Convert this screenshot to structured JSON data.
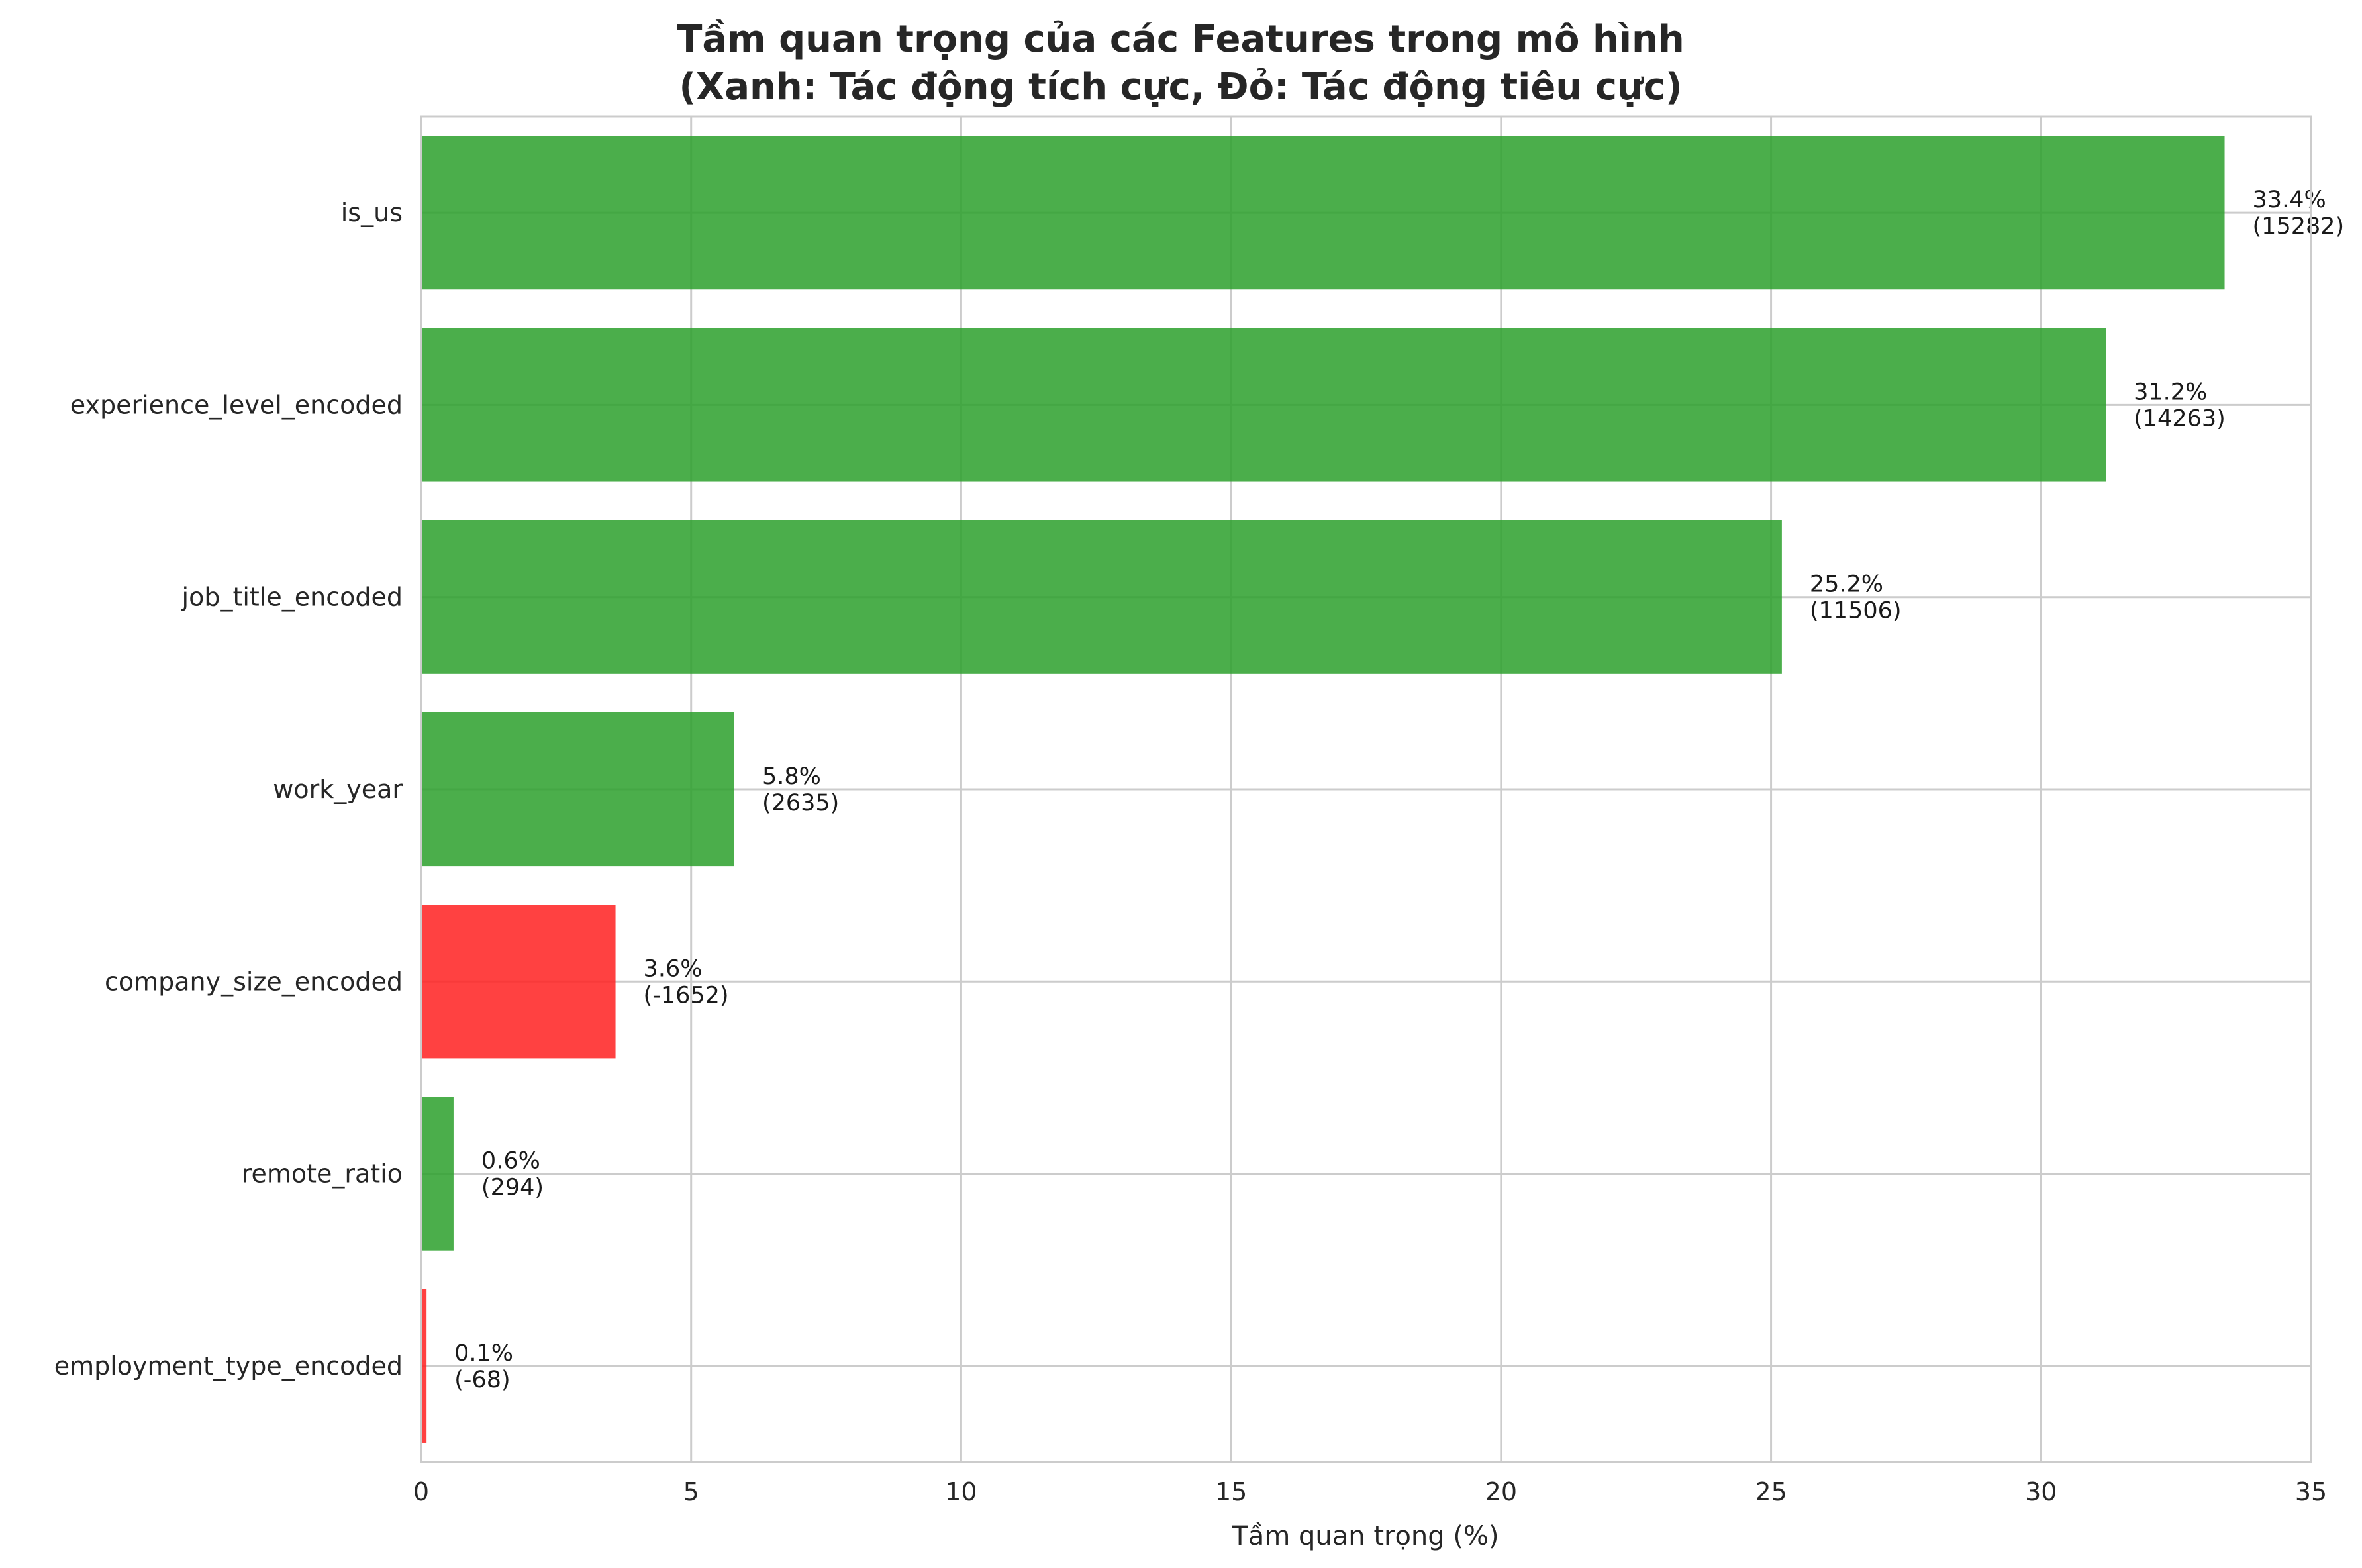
{
  "chart_data": {
    "type": "bar",
    "orientation": "horizontal",
    "title_line1": "Tầm quan trọng của các Features trong mô hình",
    "title_line2": "(Xanh: Tác động tích cực, Đỏ: Tác động tiêu cực)",
    "xlabel": "Tầm quan trọng (%)",
    "ylabel": "",
    "xlim": [
      0,
      35
    ],
    "xticks": [
      0,
      5,
      10,
      15,
      20,
      25,
      30,
      35
    ],
    "grid": true,
    "colors": {
      "positive": "#2ca02c",
      "negative": "#ff2020"
    },
    "categories": [
      "is_us",
      "experience_level_encoded",
      "job_title_encoded",
      "work_year",
      "company_size_encoded",
      "remote_ratio",
      "employment_type_encoded"
    ],
    "values": [
      33.4,
      31.2,
      25.2,
      5.8,
      3.6,
      0.6,
      0.1
    ],
    "coefficients": [
      15282,
      14263,
      11506,
      2635,
      -1652,
      294,
      -68
    ],
    "label_pct": [
      "33.4%",
      "31.2%",
      "25.2%",
      "5.8%",
      "3.6%",
      "0.6%",
      "0.1%"
    ],
    "label_coef": [
      "(15282)",
      "(14263)",
      "(11506)",
      "(2635)",
      "(-1652)",
      "(294)",
      "(-68)"
    ]
  }
}
